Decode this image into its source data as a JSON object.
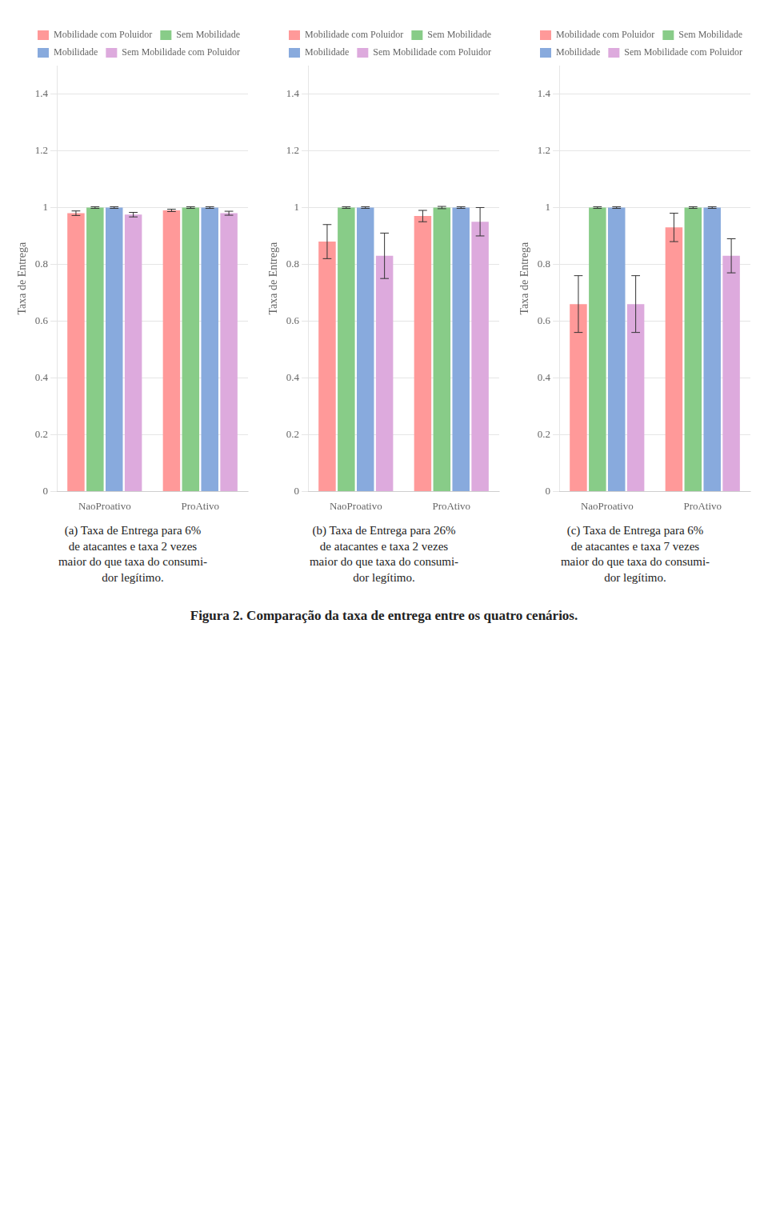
{
  "title": "Figura 2. Comparação da taxa de entrega entre os quatro cenários.",
  "chart_data": [
    {
      "type": "bar",
      "subtitle": "(a) Taxa de Entrega para 6%\nde atacantes e taxa 2 vezes\nmaior do que taxa do consumi-\ndor legítimo.",
      "categories": [
        "NaoProativo",
        "ProAtivo"
      ],
      "series": [
        {
          "name": "Mobilidade com Poluidor",
          "color": "#FF9999",
          "values": [
            0.98,
            0.99
          ],
          "errors": [
            0.008,
            0.004
          ]
        },
        {
          "name": "Sem Mobilidade",
          "color": "#88CC88",
          "values": [
            1.0,
            1.0
          ],
          "errors": [
            0.003,
            0.003
          ]
        },
        {
          "name": "Mobilidade",
          "color": "#88AADD",
          "values": [
            1.0,
            1.0
          ],
          "errors": [
            0.003,
            0.003
          ]
        },
        {
          "name": "Sem Mobilidade com Poluidor",
          "color": "#DDAADD",
          "values": [
            0.975,
            0.98
          ],
          "errors": [
            0.008,
            0.007
          ]
        }
      ],
      "ylabel": "Taxa de Entrega",
      "ylim": [
        0,
        1.5
      ],
      "yticks": [
        0,
        0.2,
        0.4,
        0.6,
        0.8,
        1,
        1.2,
        1.4
      ],
      "grid": true,
      "legend": "upper right"
    },
    {
      "type": "bar",
      "subtitle": "(b) Taxa de Entrega para 26%\nde atacantes e taxa 2 vezes\nmaior do que taxa do consumi-\ndor legítimo.",
      "categories": [
        "NaoProativo",
        "ProAtivo"
      ],
      "series": [
        {
          "name": "Mobilidade com Poluidor",
          "color": "#FF9999",
          "values": [
            0.88,
            0.97
          ],
          "errors": [
            0.06,
            0.02
          ]
        },
        {
          "name": "Sem Mobilidade",
          "color": "#88CC88",
          "values": [
            1.0,
            1.0
          ],
          "errors": [
            0.003,
            0.004
          ]
        },
        {
          "name": "Mobilidade",
          "color": "#88AADD",
          "values": [
            1.0,
            1.0
          ],
          "errors": [
            0.003,
            0.003
          ]
        },
        {
          "name": "Sem Mobilidade com Poluidor",
          "color": "#DDAADD",
          "values": [
            0.83,
            0.95
          ],
          "errors": [
            0.08,
            0.05
          ]
        }
      ],
      "ylabel": "Taxa de Entrega",
      "ylim": [
        0,
        1.5
      ],
      "yticks": [
        0,
        0.2,
        0.4,
        0.6,
        0.8,
        1,
        1.2,
        1.4
      ],
      "grid": true,
      "legend": "upper right"
    },
    {
      "type": "bar",
      "subtitle": "(c) Taxa de Entrega para 6%\nde atacantes e taxa 7 vezes\nmaior do que taxa do consumi-\ndor legítimo.",
      "categories": [
        "NaoProativo",
        "ProAtivo"
      ],
      "series": [
        {
          "name": "Mobilidade com Poluidor",
          "color": "#FF9999",
          "values": [
            0.66,
            0.93
          ],
          "errors": [
            0.1,
            0.05
          ]
        },
        {
          "name": "Sem Mobilidade",
          "color": "#88CC88",
          "values": [
            1.0,
            1.0
          ],
          "errors": [
            0.003,
            0.003
          ]
        },
        {
          "name": "Mobilidade",
          "color": "#88AADD",
          "values": [
            1.0,
            1.0
          ],
          "errors": [
            0.003,
            0.003
          ]
        },
        {
          "name": "Sem Mobilidade com Poluidor",
          "color": "#DDAADD",
          "values": [
            0.66,
            0.83
          ],
          "errors": [
            0.1,
            0.06
          ]
        }
      ],
      "ylabel": "Taxa de Entrega",
      "ylim": [
        0,
        1.5
      ],
      "yticks": [
        0,
        0.2,
        0.4,
        0.6,
        0.8,
        1,
        1.2,
        1.4
      ],
      "grid": true,
      "legend": "upper right"
    }
  ]
}
